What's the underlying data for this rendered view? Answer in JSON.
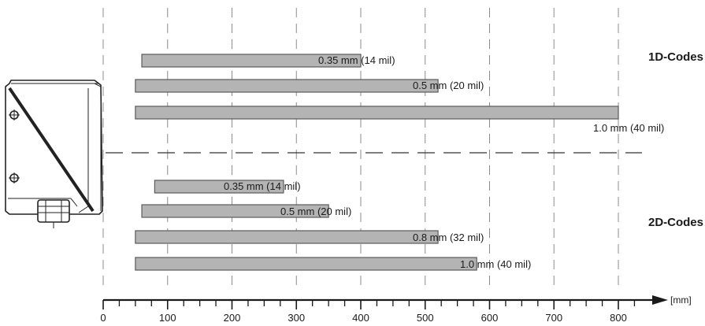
{
  "colors": {
    "bar_fill": "#b4b4b4",
    "bar_stroke": "#5a5a5a",
    "grid": "#8c8c8c",
    "axis": "#1a1a1a",
    "device": "#222222"
  },
  "chart_data": {
    "type": "bar",
    "orientation": "horizontal",
    "x_unit": "[mm]",
    "x_ticks": [
      0,
      100,
      200,
      300,
      400,
      500,
      600,
      700,
      800
    ],
    "x_tick_labels": [
      "0",
      "100",
      "200",
      "300",
      "400",
      "500",
      "600",
      "700",
      "800"
    ],
    "xlim": [
      0,
      850
    ],
    "grid": "vertical dashed",
    "groups": [
      {
        "title": "1D-Codes",
        "bars": [
          {
            "label": "0.35 mm (14 mil)",
            "start": 60,
            "end": 400
          },
          {
            "label": "0.5 mm (20 mil)",
            "start": 50,
            "end": 520
          },
          {
            "label": "1.0 mm (40 mil)",
            "start": 50,
            "end": 800
          }
        ]
      },
      {
        "title": "2D-Codes",
        "bars": [
          {
            "label": "0.35 mm (14 mil)",
            "start": 80,
            "end": 280
          },
          {
            "label": "0.5 mm (20 mil)",
            "start": 60,
            "end": 350
          },
          {
            "label": "0.8 mm (32 mil)",
            "start": 50,
            "end": 520
          },
          {
            "label": "1.0 mm (40 mil)",
            "start": 50,
            "end": 580
          }
        ]
      }
    ]
  }
}
